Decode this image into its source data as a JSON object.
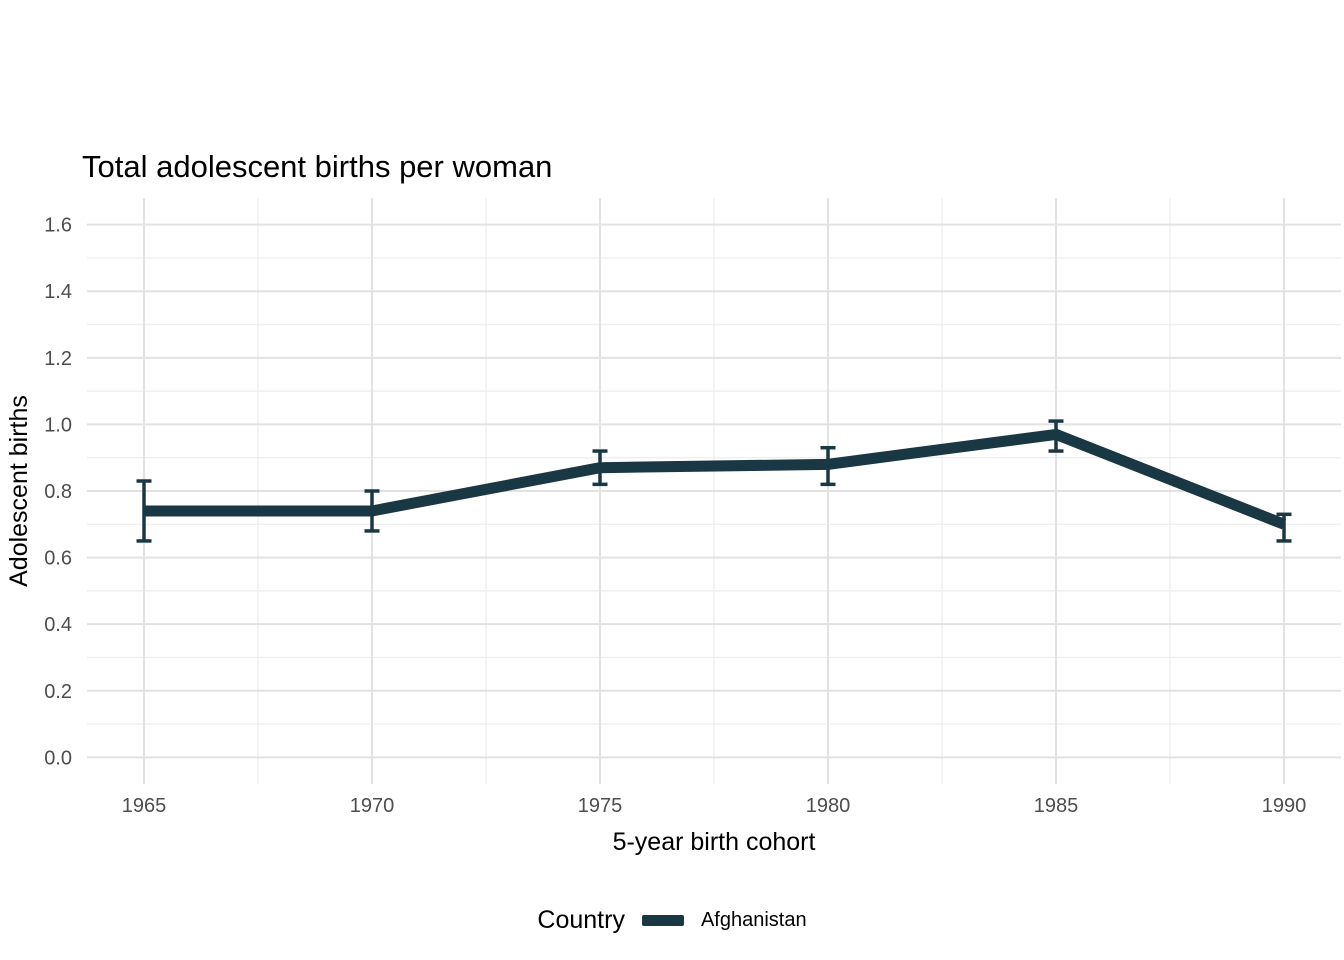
{
  "page": {
    "background": "#ffffff"
  },
  "chart_data": {
    "type": "line",
    "title": "Total adolescent births per woman",
    "xlabel": "5-year birth cohort",
    "ylabel": "Adolescent births",
    "x": [
      1965,
      1970,
      1975,
      1980,
      1985,
      1990
    ],
    "xtick_labels": [
      "1965",
      "1970",
      "1975",
      "1980",
      "1985",
      "1990"
    ],
    "yticks": [
      0.0,
      0.2,
      0.4,
      0.6,
      0.8,
      1.0,
      1.2,
      1.4,
      1.6
    ],
    "ytick_labels": [
      "0.0",
      "0.2",
      "0.4",
      "0.6",
      "0.8",
      "1.0",
      "1.2",
      "1.4",
      "1.6"
    ],
    "ylim": [
      0,
      1.6
    ],
    "xlim": [
      1965,
      1990
    ],
    "grid": "major and minor gridlines, no axis lines, white background",
    "legend": {
      "title": "Country",
      "position": "bottom-center"
    },
    "series": [
      {
        "name": "Afghanistan",
        "color": "#1a3843",
        "values": [
          0.74,
          0.74,
          0.87,
          0.88,
          0.97,
          0.7
        ],
        "error_low": [
          0.65,
          0.68,
          0.82,
          0.82,
          0.92,
          0.65
        ],
        "error_high": [
          0.83,
          0.8,
          0.92,
          0.93,
          1.01,
          0.73
        ]
      }
    ]
  },
  "colors": {
    "grid_major": "#e2e2e2",
    "grid_minor": "#efefef",
    "tick_label": "#4d4d4d",
    "text": "#000000"
  }
}
